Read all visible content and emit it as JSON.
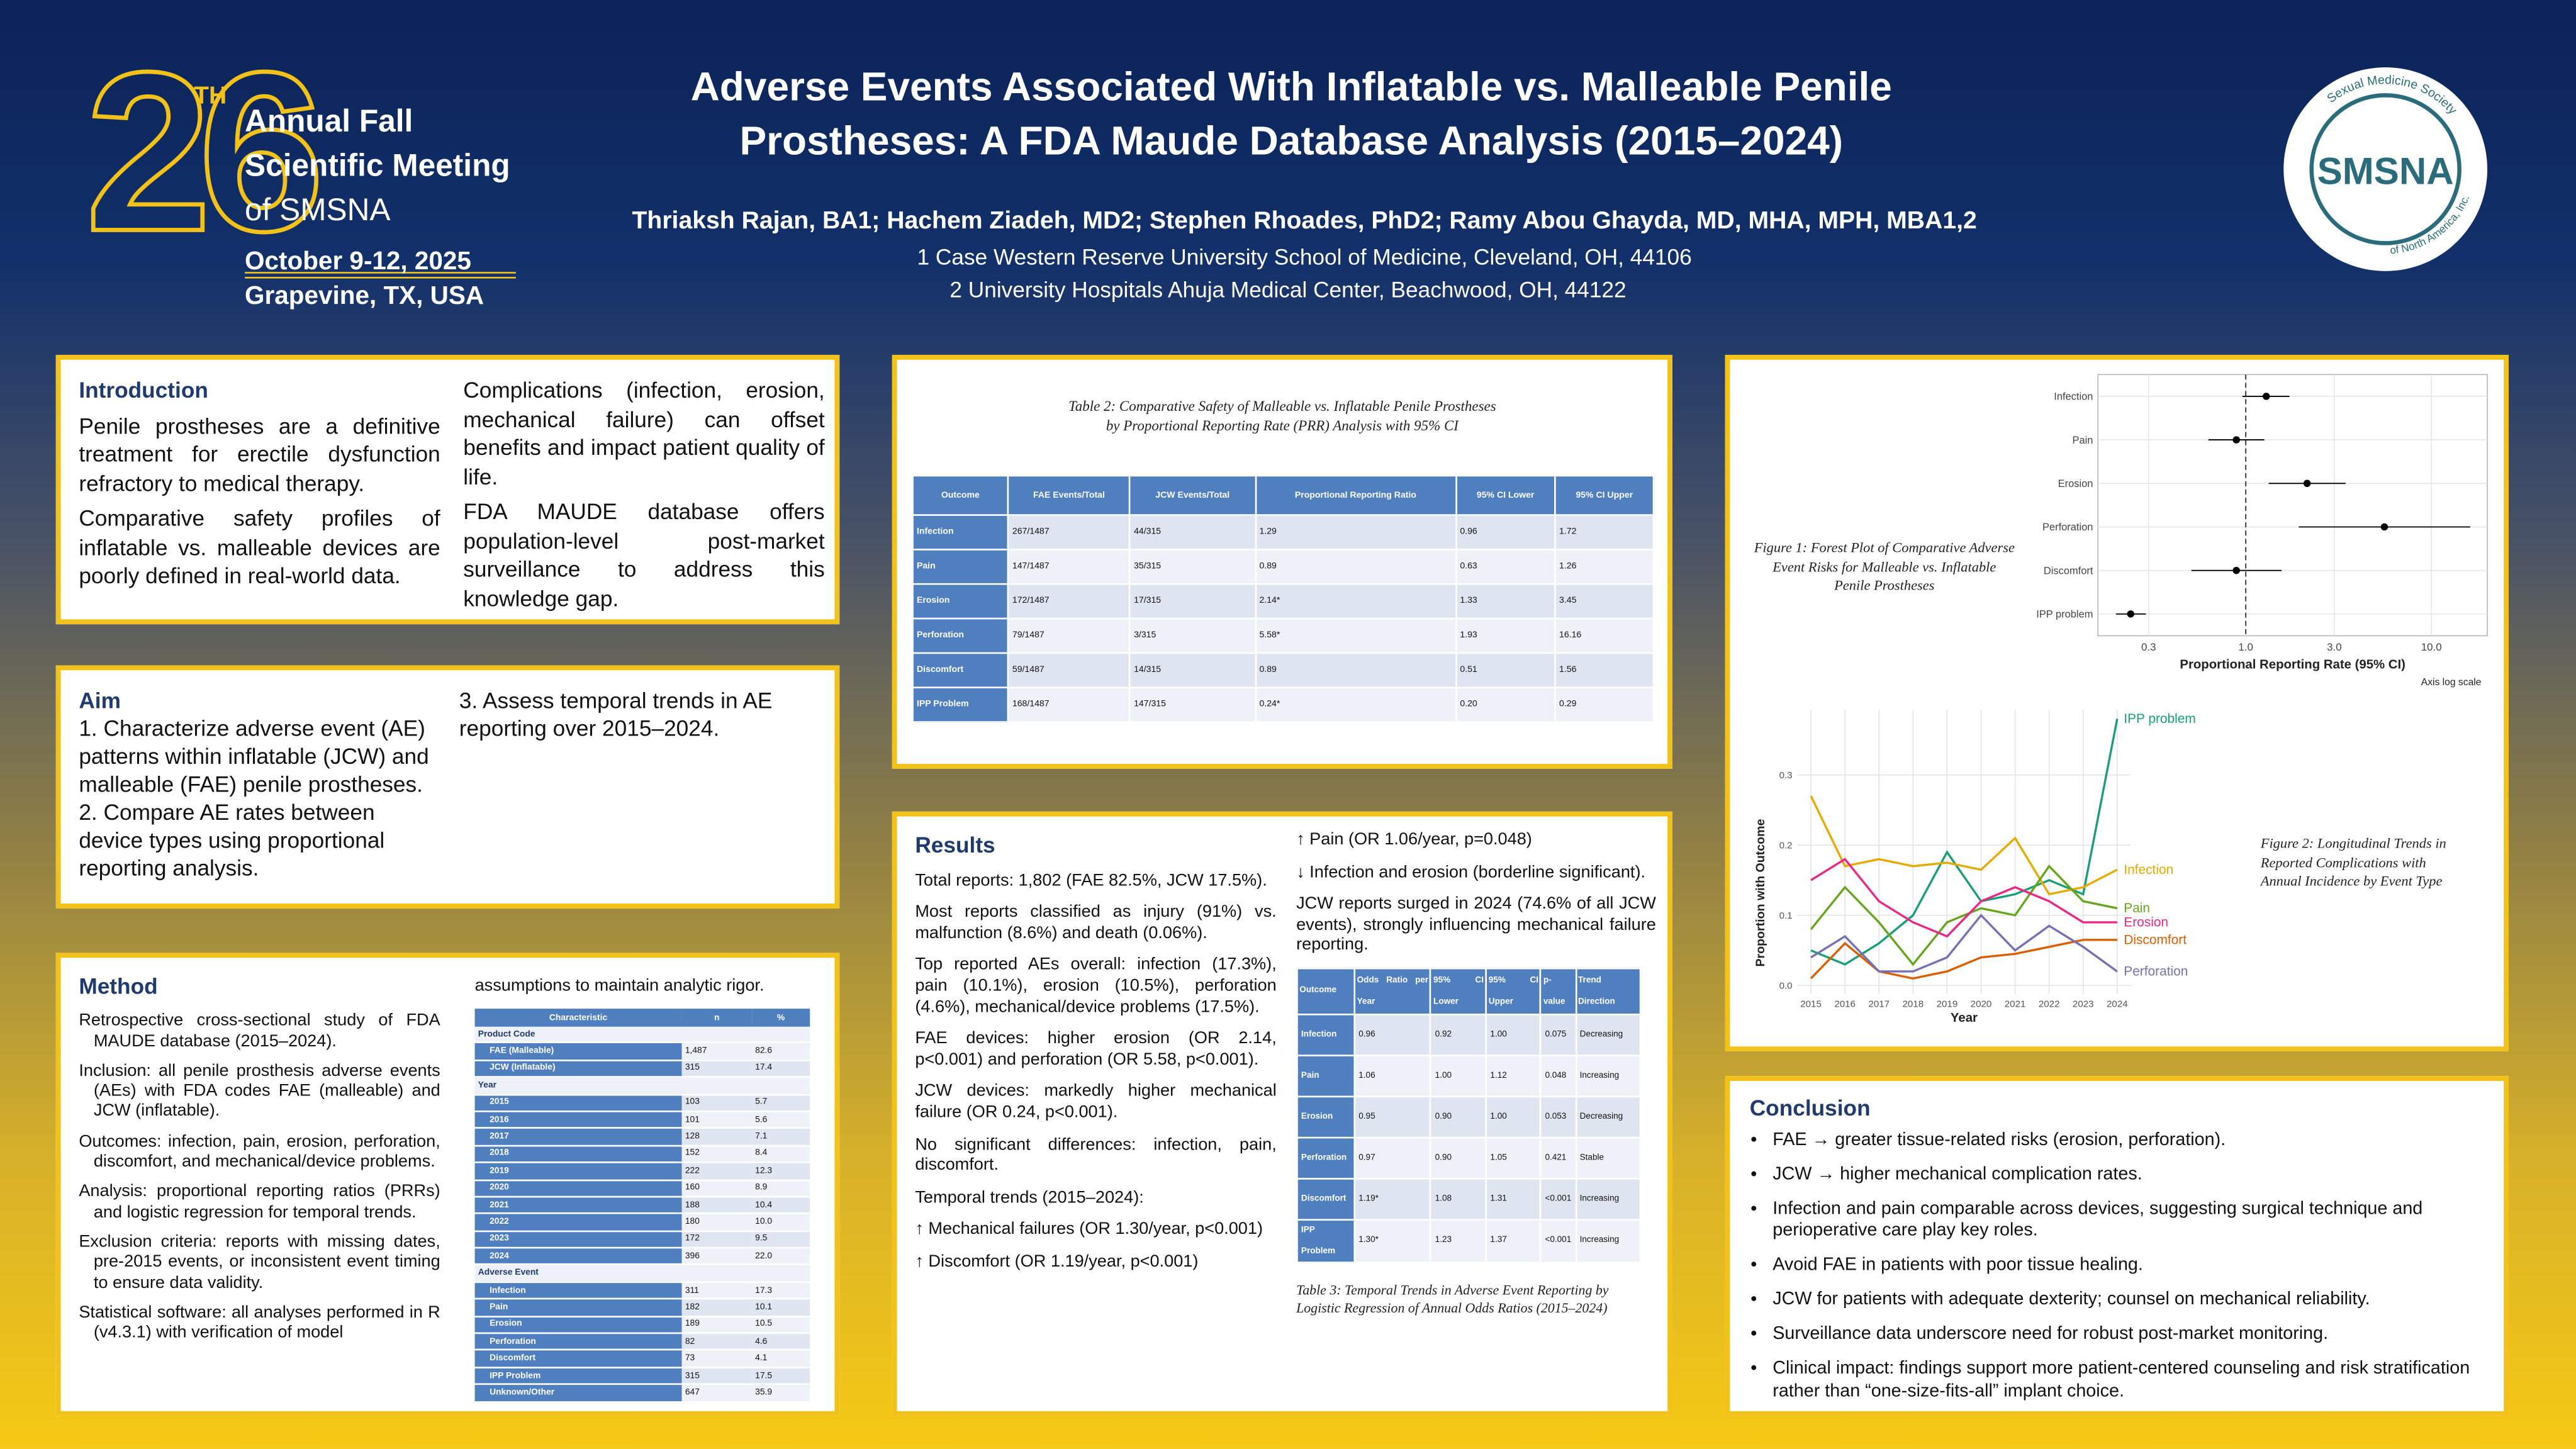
{
  "header": {
    "logo": {
      "number": "26",
      "suffix": "TH",
      "lines": [
        "Annual Fall",
        "Scientific Meeting",
        "of SMSNA"
      ],
      "dates": "October 9-12, 2025",
      "location": "Grapevine, TX, USA"
    },
    "title_lines": [
      "Adverse Events Associated With Inflatable vs. Malleable Penile",
      "Prostheses: A FDA Maude Database Analysis (2015–2024)"
    ],
    "authors": "Thriaksh Rajan, BA1; Hachem Ziadeh, MD2; Stephen Rhoades, PhD2; Ramy Abou Ghayda, MD, MHA, MPH, MBA1,2",
    "affiliations": [
      "1 Case Western Reserve University School of Medicine, Cleveland, OH, 44106",
      "2  University Hospitals Ahuja Medical Center, Beachwood, OH, 44122"
    ],
    "society_logo": {
      "ring_top": "Sexual Medicine Society",
      "acronym": "SMSNA",
      "ring_bottom": "of North America, Inc."
    }
  },
  "introduction": {
    "heading": "Introduction",
    "paragraphs": [
      "Penile prostheses are a definitive treatment for erectile dysfunction refractory to medical therapy.",
      "Comparative safety profiles of inflatable vs. malleable devices are poorly defined in real-world data.",
      "Complications (infection, erosion, mechanical failure) can offset benefits and impact patient quality of life.",
      "FDA MAUDE database offers population-level post-market surveillance to address this knowledge gap."
    ]
  },
  "aim": {
    "heading": "Aim",
    "items": [
      "1. Characterize adverse event (AE) patterns within inflatable (JCW) and malleable (FAE) penile prostheses.",
      "2. Compare AE rates between device types using proportional reporting analysis.",
      "3. Assess temporal trends in AE reporting over 2015–2024."
    ]
  },
  "method": {
    "heading": "Method",
    "paragraphs": [
      "Retrospective cross-sectional study of FDA MAUDE database (2015–2024).",
      "Inclusion: all penile prosthesis adverse events (AEs) with FDA codes FAE (malleable) and JCW (inflatable).",
      "Outcomes: infection, pain, erosion, perforation, discomfort, and mechanical/device problems.",
      "Analysis: proportional reporting ratios (PRRs) and logistic regression for temporal trends.",
      "Exclusion criteria: reports with missing dates, pre-2015 events, or inconsistent event timing to ensure data validity.",
      "Statistical software: all analyses performed in R (v4.3.1) with verification of model"
    ],
    "continuation": "assumptions to maintain analytic rigor.",
    "table": {
      "columns": [
        "Characteristic",
        "n",
        "%"
      ],
      "groups": [
        {
          "label": "Product Code",
          "rows": [
            [
              "FAE (Malleable)",
              "1,487",
              "82.6"
            ],
            [
              "JCW (Inflatable)",
              "315",
              "17.4"
            ]
          ]
        },
        {
          "label": "Year",
          "rows": [
            [
              "2015",
              "103",
              "5.7"
            ],
            [
              "2016",
              "101",
              "5.6"
            ],
            [
              "2017",
              "128",
              "7.1"
            ],
            [
              "2018",
              "152",
              "8.4"
            ],
            [
              "2019",
              "222",
              "12.3"
            ],
            [
              "2020",
              "160",
              "8.9"
            ],
            [
              "2021",
              "188",
              "10.4"
            ],
            [
              "2022",
              "180",
              "10.0"
            ],
            [
              "2023",
              "172",
              "9.5"
            ],
            [
              "2024",
              "396",
              "22.0"
            ]
          ]
        },
        {
          "label": "Adverse Event",
          "rows": [
            [
              "Infection",
              "311",
              "17.3"
            ],
            [
              "Pain",
              "182",
              "10.1"
            ],
            [
              "Erosion",
              "189",
              "10.5"
            ],
            [
              "Perforation",
              "82",
              "4.6"
            ],
            [
              "Discomfort",
              "73",
              "4.1"
            ],
            [
              "IPP Problem",
              "315",
              "17.5"
            ],
            [
              "Unknown/Other",
              "647",
              "35.9"
            ]
          ]
        }
      ]
    }
  },
  "table2": {
    "caption_lines": [
      "Table 2: Comparative Safety of Malleable vs. Inflatable Penile Prostheses",
      "by Proportional Reporting Rate (PRR) Analysis with 95% CI"
    ],
    "columns": [
      "Outcome",
      "FAE Events/Total",
      "JCW Events/Total",
      "Proportional Reporting Ratio",
      "95% CI Lower",
      "95% CI Upper"
    ],
    "rows": [
      [
        "Infection",
        "267/1487",
        "44/315",
        "1.29",
        "0.96",
        "1.72"
      ],
      [
        "Pain",
        "147/1487",
        "35/315",
        "0.89",
        "0.63",
        "1.26"
      ],
      [
        "Erosion",
        "172/1487",
        "17/315",
        "2.14*",
        "1.33",
        "3.45"
      ],
      [
        "Perforation",
        "79/1487",
        "3/315",
        "5.58*",
        "1.93",
        "16.16"
      ],
      [
        "Discomfort",
        "59/1487",
        "14/315",
        "0.89",
        "0.51",
        "1.56"
      ],
      [
        "IPP Problem",
        "168/1487",
        "147/315",
        "0.24*",
        "0.20",
        "0.29"
      ]
    ]
  },
  "results": {
    "heading": "Results",
    "column_1": [
      "Total reports: 1,802 (FAE 82.5%, JCW 17.5%).",
      "Most reports classified as injury (91%) vs. malfunction (8.6%) and death (0.06%).",
      "Top reported AEs overall: infection (17.3%), pain (10.1%), erosion (10.5%), perforation (4.6%), mechanical/device problems (17.5%).",
      "FAE devices: higher erosion (OR 2.14, p<0.001) and perforation (OR 5.58, p<0.001).",
      "JCW devices: markedly higher mechanical failure (OR 0.24, p<0.001).",
      "No significant differences: infection, pain, discomfort.",
      "Temporal trends (2015–2024):",
      "↑ Mechanical failures (OR 1.30/year, p<0.001)",
      "↑ Discomfort (OR 1.19/year, p<0.001)"
    ],
    "column_2": [
      "↑ Pain (OR 1.06/year, p=0.048)",
      "↓ Infection and erosion (borderline significant).",
      "JCW reports surged in 2024 (74.6% of all JCW events), strongly influencing mechanical failure reporting."
    ],
    "table3": {
      "columns": [
        "Outcome",
        "Odds Ratio per Year",
        "95% CI Lower",
        "95% CI Upper",
        "p-value",
        "Trend Direction"
      ],
      "rows": [
        [
          "Infection",
          "0.96",
          "0.92",
          "1.00",
          "0.075",
          "Decreasing"
        ],
        [
          "Pain",
          "1.06",
          "1.00",
          "1.12",
          "0.048",
          "Increasing"
        ],
        [
          "Erosion",
          "0.95",
          "0.90",
          "1.00",
          "0.053",
          "Decreasing"
        ],
        [
          "Perforation",
          "0.97",
          "0.90",
          "1.05",
          "0.421",
          "Stable"
        ],
        [
          "Discomfort",
          "1.19*",
          "1.08",
          "1.31",
          "<0.001",
          "Increasing"
        ],
        [
          "IPP Problem",
          "1.30*",
          "1.23",
          "1.37",
          "<0.001",
          "Increasing"
        ]
      ]
    },
    "table3_caption": "Table 3: Temporal Trends in Adverse Event Reporting by Logistic Regression of Annual Odds Ratios (2015–2024)"
  },
  "figures": {
    "figure1_caption": "Figure 1: Forest Plot of Comparative Adverse Event Risks for Malleable vs. Inflatable Penile Prostheses",
    "figure2_caption": "Figure 2: Longitudinal Trends in Reported Complications with Annual Incidence by Event Type"
  },
  "conclusion": {
    "heading": "Conclusion",
    "items": [
      "FAE → greater tissue-related risks (erosion, perforation).",
      "JCW → higher mechanical complication rates.",
      "Infection and pain comparable across devices, suggesting surgical technique and perioperative care play key roles.",
      "Avoid FAE in patients with poor tissue healing.",
      "JCW for patients with adequate dexterity; counsel on mechanical reliability.",
      "Surveillance data underscore need for robust post-market monitoring.",
      "Clinical impact: findings support more patient-centered counseling and risk stratification rather than “one-size-fits-all” implant choice."
    ]
  },
  "chart_data": [
    {
      "type": "forest",
      "categories": [
        "Infection",
        "Pain",
        "Erosion",
        "Perforation",
        "Discomfort",
        "IPP problem"
      ],
      "values": [
        1.29,
        0.89,
        2.14,
        5.58,
        0.89,
        0.24
      ],
      "ci_lower": [
        0.96,
        0.63,
        1.33,
        1.93,
        0.51,
        0.2
      ],
      "ci_upper": [
        1.72,
        1.26,
        3.45,
        16.16,
        1.56,
        0.29
      ],
      "x_scale": "log",
      "xlim": [
        0.16,
        20
      ],
      "xticks": [
        0.3,
        {
          "value": 1,
          "label": "1.0"
        },
        {
          "value": 3,
          "label": "3.0"
        },
        {
          "value": 10,
          "label": "10.0"
        }
      ],
      "reference_line": 1,
      "xlabel": "Proportional Reporting Rate (95% CI)",
      "note": "Axis log scale",
      "grid": true,
      "color": "#000000"
    },
    {
      "type": "line",
      "x": [
        2015,
        2016,
        2017,
        2018,
        2019,
        2020,
        2021,
        2022,
        2023,
        2024
      ],
      "xlim": [
        2014.6,
        2024.4
      ],
      "xticks": [
        2015,
        2016,
        2017,
        2018,
        2019,
        2020,
        2021,
        2022,
        2023,
        2024
      ],
      "ylim": [
        -0.012,
        0.393
      ],
      "yticks": [
        {
          "value": 0,
          "label": "0.0"
        },
        0.1,
        0.2,
        0.3
      ],
      "xlabel": "Year",
      "ylabel": "Proportion with Outcome",
      "grid": true,
      "series": [
        {
          "name": "IPP problem",
          "color": "#1b9e77",
          "values": [
            0.05,
            0.03,
            0.06,
            0.1,
            0.19,
            0.12,
            0.13,
            0.15,
            0.13,
            0.38
          ]
        },
        {
          "name": "Infection",
          "color": "#e6ab02",
          "values": [
            0.27,
            0.17,
            0.18,
            0.17,
            0.175,
            0.165,
            0.21,
            0.13,
            0.14,
            0.165
          ]
        },
        {
          "name": "Pain",
          "color": "#66a61e",
          "values": [
            0.08,
            0.14,
            0.09,
            0.03,
            0.09,
            0.11,
            0.1,
            0.17,
            0.12,
            0.11
          ]
        },
        {
          "name": "Erosion",
          "color": "#e7298a",
          "values": [
            0.15,
            0.18,
            0.12,
            0.09,
            0.07,
            0.12,
            0.14,
            0.12,
            0.09,
            0.09
          ]
        },
        {
          "name": "Discomfort",
          "color": "#d95f02",
          "values": [
            0.01,
            0.06,
            0.02,
            0.01,
            0.02,
            0.04,
            0.045,
            0.055,
            0.065,
            0.065
          ]
        },
        {
          "name": "Perforation",
          "color": "#7570b3",
          "values": [
            0.04,
            0.07,
            0.02,
            0.02,
            0.04,
            0.1,
            0.05,
            0.085,
            0.055,
            0.02
          ]
        }
      ]
    }
  ]
}
